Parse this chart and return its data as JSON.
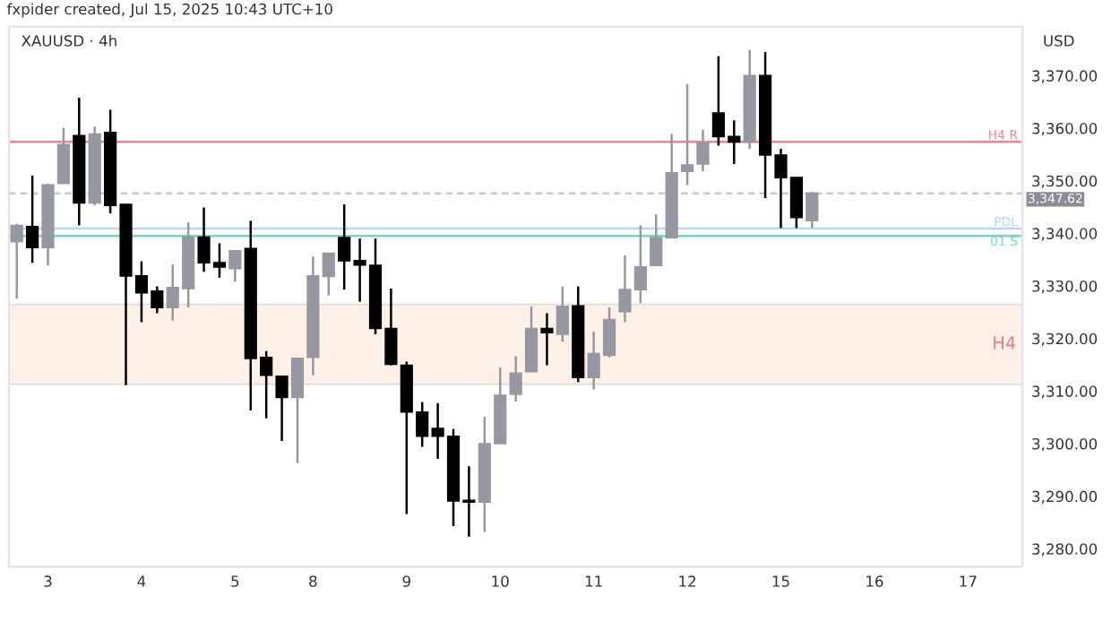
{
  "chart_data": {
    "type": "candlestick",
    "title": "XAUUSD · 4h",
    "ylabel": "USD",
    "annotations": [
      "fxpider created, Jul 15, 2025 10:43 UTC+10"
    ],
    "categories": [
      null,
      null,
      "3",
      null,
      null,
      null,
      null,
      null,
      "4",
      null,
      null,
      null,
      null,
      null,
      "5",
      null,
      null,
      null,
      null,
      "8",
      null,
      null,
      null,
      null,
      null,
      "9",
      null,
      null,
      null,
      null,
      null,
      "10",
      null,
      null,
      null,
      null,
      null,
      "11",
      null,
      null,
      null,
      null,
      null,
      "12",
      null,
      null,
      null,
      null,
      null,
      "15",
      null,
      null,
      null,
      null,
      null,
      "16",
      null,
      null,
      null,
      null,
      null,
      "17",
      null,
      null,
      null
    ],
    "ohlc": [
      [
        3338.4,
        3341.8,
        3327.6,
        3341.5
      ],
      [
        3341.3,
        3351.0,
        3334.4,
        3337.3
      ],
      [
        3337.3,
        3349.5,
        3333.9,
        3349.2
      ],
      [
        3349.5,
        3360.1,
        3349.5,
        3356.9
      ],
      [
        3358.6,
        3365.8,
        3341.5,
        3345.8
      ],
      [
        3345.8,
        3360.3,
        3345.3,
        3358.9
      ],
      [
        3359.2,
        3363.5,
        3343.8,
        3345.3
      ],
      [
        3345.5,
        3345.5,
        3311.1,
        3331.9
      ],
      [
        3331.9,
        3334.7,
        3323.1,
        3328.7
      ],
      [
        3329.0,
        3329.9,
        3324.8,
        3325.9
      ],
      [
        3325.9,
        3334.1,
        3323.4,
        3329.7
      ],
      [
        3329.5,
        3342.1,
        3325.9,
        3339.3
      ],
      [
        3339.3,
        3344.9,
        3332.7,
        3334.4
      ],
      [
        3334.4,
        3338.1,
        3331.6,
        3333.6
      ],
      [
        3333.3,
        3336.7,
        3330.8,
        3336.7
      ],
      [
        3337.1,
        3342.4,
        3306.3,
        3316.2
      ],
      [
        3316.4,
        3317.6,
        3304.8,
        3313.0
      ],
      [
        3312.8,
        3312.8,
        3300.5,
        3308.8
      ],
      [
        3308.8,
        3316.2,
        3296.3,
        3316.2
      ],
      [
        3316.4,
        3335.6,
        3313.0,
        3331.9
      ],
      [
        3331.8,
        3336.2,
        3328.2,
        3336.2
      ],
      [
        3339.2,
        3345.5,
        3329.3,
        3334.8
      ],
      [
        3334.8,
        3339.0,
        3327.0,
        3334.0
      ],
      [
        3333.9,
        3339.0,
        3320.8,
        3321.9
      ],
      [
        3321.9,
        3329.5,
        3314.9,
        3315.1
      ],
      [
        3314.9,
        3315.6,
        3286.6,
        3306.0
      ],
      [
        3306.0,
        3307.9,
        3299.4,
        3301.4
      ],
      [
        3302.9,
        3307.7,
        3297.1,
        3301.4
      ],
      [
        3301.4,
        3302.8,
        3284.3,
        3289.1
      ],
      [
        3289.2,
        3295.7,
        3282.3,
        3288.9
      ],
      [
        3288.9,
        3305.1,
        3283.2,
        3300.0
      ],
      [
        3300.0,
        3314.5,
        3300.0,
        3309.2
      ],
      [
        3309.4,
        3316.6,
        3308.0,
        3313.4
      ],
      [
        3313.7,
        3326.1,
        3313.7,
        3321.9
      ],
      [
        3321.9,
        3324.8,
        3314.9,
        3321.1
      ],
      [
        3320.8,
        3329.9,
        3319.4,
        3326.1
      ],
      [
        3326.2,
        3329.9,
        3311.7,
        3312.6
      ],
      [
        3312.6,
        3321.3,
        3310.3,
        3317.1
      ],
      [
        3316.8,
        3325.9,
        3316.4,
        3323.6
      ],
      [
        3325.1,
        3335.8,
        3323.1,
        3329.3
      ],
      [
        3329.3,
        3341.5,
        3326.7,
        3333.6
      ],
      [
        3333.9,
        3343.6,
        3333.9,
        3339.2
      ],
      [
        3339.2,
        3358.9,
        3339.2,
        3351.5
      ],
      [
        3351.8,
        3368.4,
        3349.2,
        3353.0
      ],
      [
        3353.2,
        3359.7,
        3351.8,
        3357.2
      ],
      [
        3362.9,
        3373.7,
        3356.7,
        3358.4
      ],
      [
        3358.4,
        3361.5,
        3353.2,
        3357.4
      ],
      [
        3357.4,
        3374.9,
        3356.1,
        3370.0
      ],
      [
        3370.0,
        3374.5,
        3346.7,
        3354.9
      ],
      [
        3354.9,
        3356.1,
        3341.0,
        3350.6
      ],
      [
        3350.6,
        3350.6,
        3341.0,
        3343.0
      ],
      [
        3342.4,
        3347.9,
        3341.0,
        3347.62
      ],
      null,
      null,
      null,
      null,
      null,
      null,
      null,
      null,
      null,
      null,
      null,
      null,
      null
    ],
    "colors": [
      "#9598a1",
      "#000000",
      "#9598a1",
      "#9598a1",
      "#000000",
      "#9598a1",
      "#000000",
      "#000000",
      "#000000",
      "#000000",
      "#9598a1",
      "#9598a1",
      "#000000",
      "#000000",
      "#9598a1",
      "#000000",
      "#000000",
      "#000000",
      "#9598a1",
      "#9598a1",
      "#9598a1",
      "#000000",
      "#000000",
      "#000000",
      "#000000",
      "#000000",
      "#000000",
      "#000000",
      "#000000",
      "#000000",
      "#9598a1",
      "#9598a1",
      "#9598a1",
      "#9598a1",
      "#000000",
      "#9598a1",
      "#000000",
      "#9598a1",
      "#9598a1",
      "#9598a1",
      "#9598a1",
      "#9598a1",
      "#9598a1",
      "#9598a1",
      "#9598a1",
      "#000000",
      "#000000",
      "#9598a1",
      "#000000",
      "#000000",
      "#000000",
      "#9598a1",
      null,
      null,
      null,
      null,
      null,
      null,
      null,
      null,
      null,
      null,
      null,
      null,
      null
    ],
    "ylim": [
      3276.6,
      3379.3
    ],
    "yticks": [
      {
        "value": 3280,
        "label": "3,280.00"
      },
      {
        "value": 3290,
        "label": "3,290.00"
      },
      {
        "value": 3300,
        "label": "3,300.00"
      },
      {
        "value": 3310,
        "label": "3,310.00"
      },
      {
        "value": 3320,
        "label": "3,320.00"
      },
      {
        "value": 3330,
        "label": "3,330.00"
      },
      {
        "value": 3340,
        "label": "3,340.00"
      },
      {
        "value": 3350,
        "label": "3,350.00"
      },
      {
        "value": 3360,
        "label": "3,360.00"
      },
      {
        "value": 3370,
        "label": "3,370.00"
      }
    ],
    "ref_lines": [
      {
        "axis": "y",
        "value": 3357.4,
        "label": "H4 R",
        "color": "#f0838f",
        "line_style": "solid"
      },
      {
        "axis": "y",
        "value": 3340.9,
        "label": "PDL",
        "color": "#bcd4f7",
        "line_style": "solid"
      },
      {
        "axis": "y",
        "value": 3339.5,
        "label": "01 S",
        "color": "#6fd6c8",
        "line_style": "solid"
      },
      {
        "axis": "y",
        "value": 3347.62,
        "label": "3,347.62",
        "color": "#c8c8c8",
        "line_style": "dashed"
      }
    ],
    "bands": [
      {
        "axis": "y",
        "from": 3311.3,
        "to": 3326.5,
        "label": "H4",
        "color": "#fdf0e6"
      }
    ]
  }
}
